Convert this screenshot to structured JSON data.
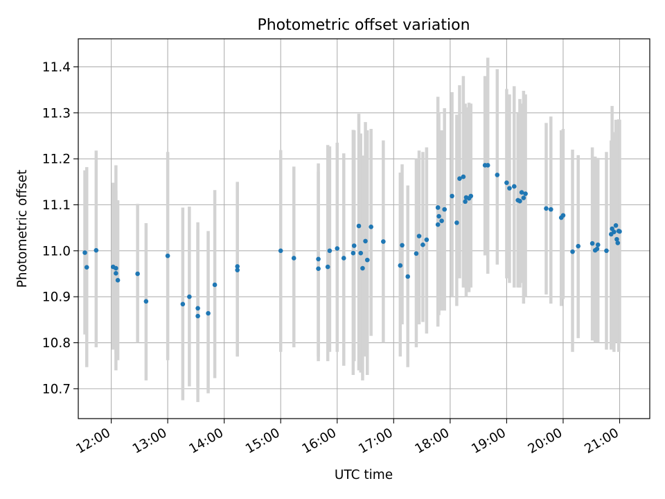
{
  "chart_data": {
    "type": "scatter",
    "title": "Photometric offset variation",
    "xlabel": "UTC time",
    "ylabel": "Photometric offset",
    "x_unit": "UTC time (HH:MM)",
    "xlim": [
      "11:25",
      "21:32"
    ],
    "ylim": [
      10.635,
      11.461
    ],
    "grid": true,
    "x_ticks": [
      "12:00",
      "13:00",
      "14:00",
      "15:00",
      "16:00",
      "17:00",
      "18:00",
      "19:00",
      "20:00",
      "21:00"
    ],
    "y_ticks": [
      "10.7",
      "10.8",
      "10.9",
      "11.0",
      "11.1",
      "11.2",
      "11.3",
      "11.4"
    ],
    "colors": {
      "points": "#1f77b4",
      "error_bars": "#d3d3d3",
      "grid": "#b0b0b0",
      "axes": "#000000"
    },
    "series": [
      {
        "x": [
          "11:32",
          "11:34",
          "11:44",
          "12:02",
          "12:05",
          "12:05",
          "12:07",
          "12:28",
          "12:37",
          "13:00",
          "13:16",
          "13:23",
          "13:32",
          "13:32",
          "13:43",
          "13:50",
          "14:14",
          "14:14",
          "15:00",
          "15:14",
          "15:40",
          "15:40",
          "15:50",
          "15:52",
          "16:00",
          "16:07",
          "16:17",
          "16:18",
          "16:23",
          "16:25",
          "16:27",
          "16:30",
          "16:32",
          "16:36",
          "16:49",
          "17:07",
          "17:09",
          "17:15",
          "17:24",
          "17:27",
          "17:31",
          "17:35",
          "17:47",
          "17:47",
          "17:48",
          "17:51",
          "17:54",
          "18:02",
          "18:07",
          "18:10",
          "18:14",
          "18:16",
          "18:17",
          "18:20",
          "18:22",
          "18:37",
          "18:40",
          "18:50",
          "19:00",
          "19:03",
          "19:08",
          "19:12",
          "19:14",
          "19:16",
          "19:18",
          "19:20",
          "19:42",
          "19:47",
          "19:58",
          "20:00",
          "20:10",
          "20:16",
          "20:31",
          "20:34",
          "20:36",
          "20:37",
          "20:46",
          "20:51",
          "20:52",
          "20:54",
          "20:56",
          "20:57",
          "20:58",
          "20:59",
          "21:00"
        ],
        "y": [
          10.996,
          10.964,
          11.001,
          10.965,
          10.951,
          10.962,
          10.936,
          10.95,
          10.89,
          10.989,
          10.884,
          10.9,
          10.858,
          10.875,
          10.864,
          10.926,
          10.958,
          10.966,
          11.0,
          10.984,
          10.961,
          10.982,
          10.965,
          11.0,
          11.005,
          10.984,
          10.995,
          11.011,
          11.054,
          10.995,
          10.962,
          11.021,
          10.98,
          11.052,
          11.02,
          10.968,
          11.012,
          10.944,
          10.994,
          11.032,
          11.013,
          11.024,
          11.094,
          11.057,
          11.075,
          11.065,
          11.09,
          11.119,
          11.061,
          11.157,
          11.161,
          11.107,
          11.116,
          11.114,
          11.119,
          11.186,
          11.186,
          11.165,
          11.148,
          11.136,
          11.14,
          11.11,
          11.108,
          11.127,
          11.115,
          11.124,
          11.092,
          11.09,
          11.072,
          11.077,
          10.998,
          11.01,
          11.016,
          11.001,
          11.004,
          11.013,
          11.0,
          11.036,
          11.048,
          11.041,
          11.055,
          11.025,
          11.017,
          11.043,
          11.042
        ],
        "yerr_low": [
          10.818,
          10.747,
          10.79,
          10.785,
          10.775,
          10.74,
          10.762,
          10.8,
          10.718,
          10.762,
          10.675,
          10.705,
          10.671,
          10.705,
          10.69,
          10.723,
          10.77,
          10.77,
          10.78,
          10.79,
          10.77,
          10.76,
          10.76,
          10.78,
          10.78,
          10.75,
          10.73,
          10.76,
          10.74,
          10.735,
          10.718,
          10.77,
          10.73,
          10.815,
          10.8,
          10.77,
          10.84,
          10.747,
          10.79,
          10.84,
          10.845,
          10.82,
          10.835,
          10.84,
          10.86,
          10.87,
          10.87,
          10.9,
          10.88,
          10.94,
          10.92,
          10.92,
          10.9,
          10.91,
          10.92,
          10.99,
          10.95,
          10.97,
          10.94,
          10.93,
          10.92,
          10.92,
          10.92,
          10.93,
          10.885,
          10.9,
          10.905,
          10.885,
          10.88,
          10.895,
          10.78,
          10.81,
          10.805,
          10.8,
          10.82,
          10.8,
          10.785,
          10.785,
          10.785,
          10.78,
          10.85,
          10.8,
          10.8,
          10.78,
          10.8
        ],
        "yerr_high": [
          11.175,
          11.182,
          11.218,
          11.148,
          11.13,
          11.186,
          11.11,
          11.102,
          11.06,
          11.215,
          11.094,
          11.096,
          11.062,
          11.046,
          11.043,
          11.132,
          11.148,
          11.15,
          11.219,
          11.183,
          11.19,
          11.172,
          11.23,
          11.227,
          11.235,
          11.212,
          11.263,
          11.262,
          11.298,
          11.255,
          11.207,
          11.28,
          11.262,
          11.265,
          11.24,
          11.17,
          11.188,
          11.142,
          11.2,
          11.218,
          11.215,
          11.225,
          11.335,
          11.29,
          11.3,
          11.262,
          11.31,
          11.345,
          11.296,
          11.36,
          11.38,
          11.32,
          11.312,
          11.322,
          11.32,
          11.38,
          11.42,
          11.395,
          11.352,
          11.34,
          11.358,
          11.3,
          11.33,
          11.32,
          11.348,
          11.34,
          11.278,
          11.292,
          11.262,
          11.265,
          11.22,
          11.208,
          11.225,
          11.205,
          11.2,
          11.202,
          11.215,
          11.24,
          11.315,
          11.258,
          11.285,
          11.28,
          11.25,
          11.286,
          11.285
        ]
      }
    ]
  }
}
